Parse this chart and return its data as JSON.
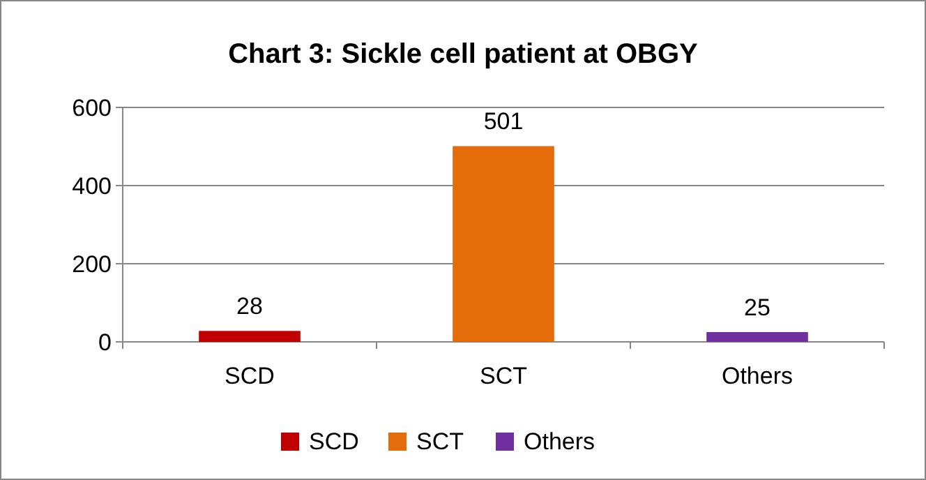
{
  "chart_data": {
    "type": "bar",
    "title": "Chart 3: Sickle cell patient at OBGY",
    "categories": [
      "SCD",
      "SCT",
      "Others"
    ],
    "series": [
      {
        "name": "SCD",
        "color": "#c00000",
        "values": [
          28,
          null,
          null
        ]
      },
      {
        "name": "SCT",
        "color": "#e46c0a",
        "values": [
          null,
          501,
          null
        ]
      },
      {
        "name": "Others",
        "color": "#7030a0",
        "values": [
          null,
          null,
          25
        ]
      }
    ],
    "ylim": [
      0,
      600
    ],
    "yticks": [
      0,
      200,
      400,
      600
    ],
    "grid": "y",
    "data_labels": true,
    "legend": "bottom"
  }
}
